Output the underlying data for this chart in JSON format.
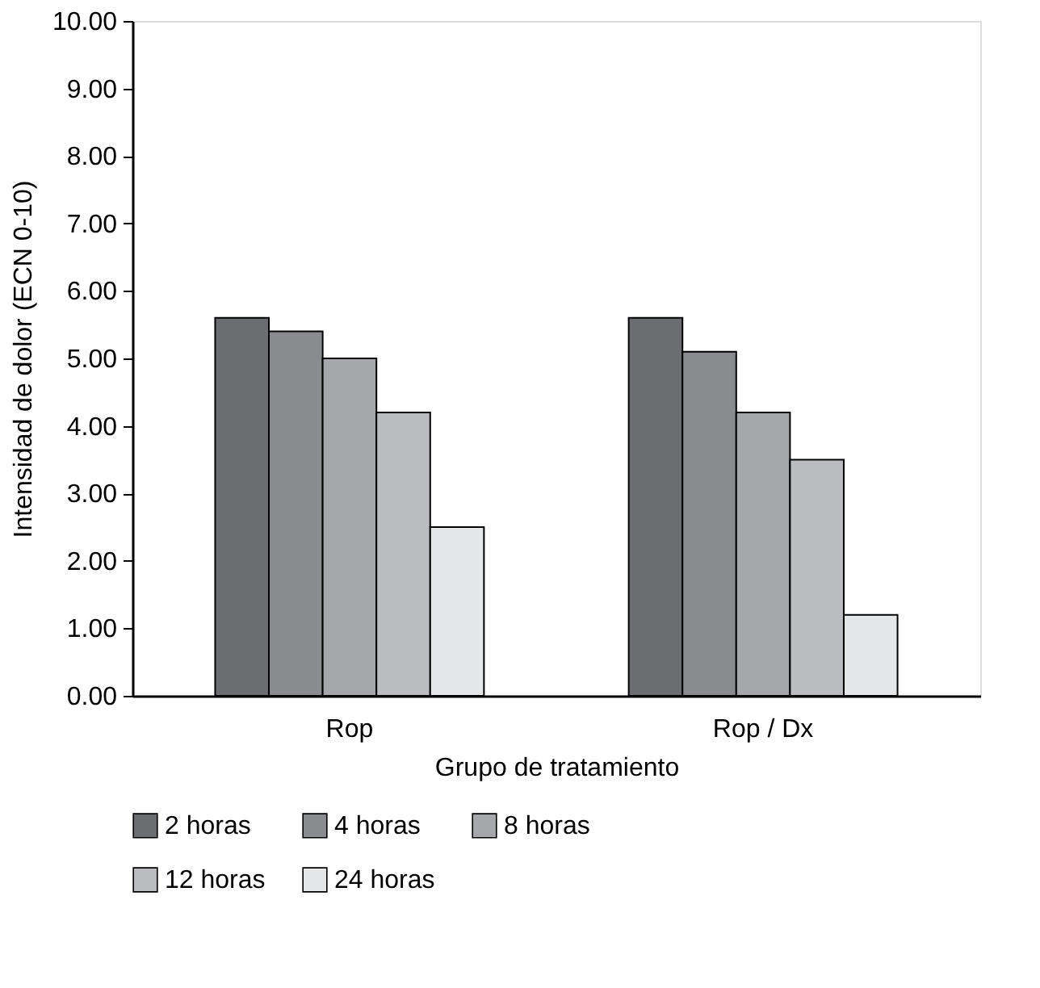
{
  "chart_data": {
    "type": "bar",
    "categories": [
      "Rop",
      "Rop / Dx"
    ],
    "xlabel": "Grupo de tratamiento",
    "ylabel": "Intensidad de dolor (ECN 0-10)",
    "series": [
      {
        "name": "2 horas",
        "color": "#6c6d70",
        "values": [
          5.6,
          5.6
        ]
      },
      {
        "name": "4 horas",
        "color": "#8a8b8e",
        "values": [
          5.4,
          5.1
        ]
      },
      {
        "name": "8 horas",
        "color": "#a6a7aa",
        "values": [
          5.0,
          4.2
        ]
      },
      {
        "name": "12 horas",
        "color": "#bbbcbf",
        "values": [
          4.2,
          3.5
        ]
      },
      {
        "name": "24 horas",
        "color": "#e5e6e7",
        "values": [
          2.5,
          1.2
        ]
      }
    ],
    "ylim": [
      0,
      10
    ],
    "yticks": [
      {
        "value": 0,
        "label": "0.00"
      },
      {
        "value": 1,
        "label": "1.00"
      },
      {
        "value": 2,
        "label": "2.00"
      },
      {
        "value": 3,
        "label": "3.00"
      },
      {
        "value": 4,
        "label": "4.00"
      },
      {
        "value": 5,
        "label": "5.00"
      },
      {
        "value": 6,
        "label": "6.00"
      },
      {
        "value": 7,
        "label": "7.00"
      },
      {
        "value": 8,
        "label": "8.00"
      },
      {
        "value": 9,
        "label": "9.00"
      },
      {
        "value": 10,
        "label": "10.00"
      }
    ],
    "grid": false,
    "legend": "bottom"
  }
}
